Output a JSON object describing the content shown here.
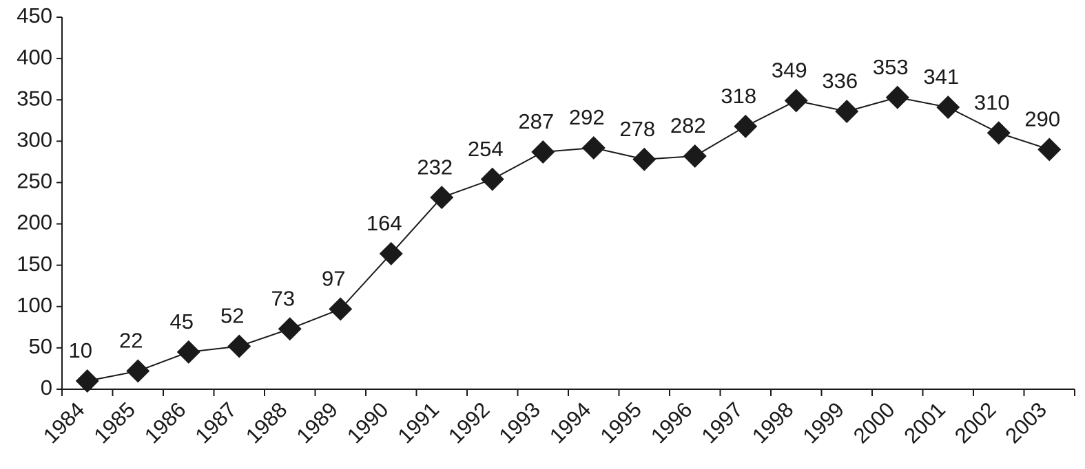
{
  "chart_data": {
    "type": "line",
    "categories": [
      "1984",
      "1985",
      "1986",
      "1987",
      "1988",
      "1989",
      "1990",
      "1991",
      "1992",
      "1993",
      "1994",
      "1995",
      "1996",
      "1997",
      "1998",
      "1999",
      "2000",
      "2001",
      "2002",
      "2003"
    ],
    "values": [
      10,
      22,
      45,
      52,
      73,
      97,
      164,
      232,
      254,
      287,
      292,
      278,
      282,
      318,
      349,
      336,
      353,
      341,
      310,
      290
    ],
    "color": "#1a1a1a",
    "ylim": [
      0,
      450
    ],
    "yticks": [
      0,
      50,
      100,
      150,
      200,
      250,
      300,
      350,
      400,
      450
    ],
    "grid": false,
    "marker": "diamond"
  }
}
